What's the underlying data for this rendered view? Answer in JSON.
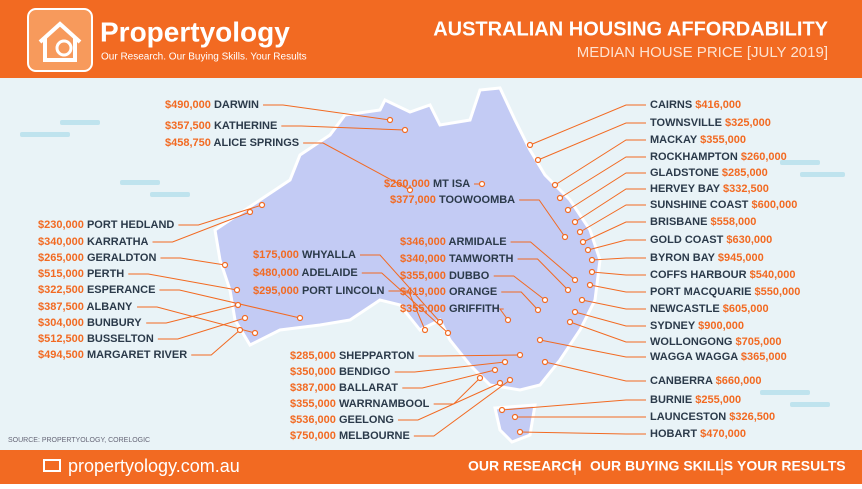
{
  "header": {
    "brand": "Propertyology",
    "tagline": "Our Research. Our Buying Skills. Your Results",
    "title": "AUSTRALIAN HOUSING AFFORDABILITY",
    "subtitle": "MEDIAN HOUSE PRICE [JULY 2019]"
  },
  "source": "SOURCE: PROPERTYOLOGY, CORELOGIC",
  "cities": [
    {
      "name": "DARWIN",
      "price": "$490,000"
    },
    {
      "name": "KATHERINE",
      "price": "$357,500"
    },
    {
      "name": "ALICE SPRINGS",
      "price": "$458,750"
    },
    {
      "name": "PORT HEDLAND",
      "price": "$230,000"
    },
    {
      "name": "KARRATHA",
      "price": "$340,000"
    },
    {
      "name": "GERALDTON",
      "price": "$265,000"
    },
    {
      "name": "PERTH",
      "price": "$515,000"
    },
    {
      "name": "ESPERANCE",
      "price": "$322,500"
    },
    {
      "name": "ALBANY",
      "price": "$387,500"
    },
    {
      "name": "BUNBURY",
      "price": "$304,000"
    },
    {
      "name": "BUSSELTON",
      "price": "$512,500"
    },
    {
      "name": "MARGARET RIVER",
      "price": "$494,500"
    },
    {
      "name": "MT ISA",
      "price": "$260,000"
    },
    {
      "name": "TOOWOOMBA",
      "price": "$377,000"
    },
    {
      "name": "WHYALLA",
      "price": "$175,000"
    },
    {
      "name": "ADELAIDE",
      "price": "$480,000"
    },
    {
      "name": "PORT LINCOLN",
      "price": "$295,000"
    },
    {
      "name": "ARMIDALE",
      "price": "$346,000"
    },
    {
      "name": "TAMWORTH",
      "price": "$340,000"
    },
    {
      "name": "DUBBO",
      "price": "$355,000"
    },
    {
      "name": "ORANGE",
      "price": "$419,000"
    },
    {
      "name": "GRIFFITH",
      "price": "$355,000"
    },
    {
      "name": "SHEPPARTON",
      "price": "$285,000"
    },
    {
      "name": "BENDIGO",
      "price": "$350,000"
    },
    {
      "name": "BALLARAT",
      "price": "$387,000"
    },
    {
      "name": "WARRNAMBOOL",
      "price": "$355,000"
    },
    {
      "name": "GEELONG",
      "price": "$536,000"
    },
    {
      "name": "MELBOURNE",
      "price": "$750,000"
    },
    {
      "name": "CAIRNS",
      "price": "$416,000"
    },
    {
      "name": "TOWNSVILLE",
      "price": "$325,000"
    },
    {
      "name": "MACKAY",
      "price": "$355,000"
    },
    {
      "name": "ROCKHAMPTON",
      "price": "$260,000"
    },
    {
      "name": "GLADSTONE",
      "price": "$285,000"
    },
    {
      "name": "HERVEY BAY",
      "price": "$332,500"
    },
    {
      "name": "SUNSHINE COAST",
      "price": "$600,000"
    },
    {
      "name": "BRISBANE",
      "price": "$558,000"
    },
    {
      "name": "GOLD COAST",
      "price": "$630,000"
    },
    {
      "name": "BYRON BAY",
      "price": "$945,000"
    },
    {
      "name": "COFFS HARBOUR",
      "price": "$540,000"
    },
    {
      "name": "PORT MACQUARIE",
      "price": "$550,000"
    },
    {
      "name": "NEWCASTLE",
      "price": "$605,000"
    },
    {
      "name": "SYDNEY",
      "price": "$900,000"
    },
    {
      "name": "WOLLONGONG",
      "price": "$705,000"
    },
    {
      "name": "WAGGA WAGGA",
      "price": "$365,000"
    },
    {
      "name": "CANBERRA",
      "price": "$660,000"
    },
    {
      "name": "BURNIE",
      "price": "$255,000"
    },
    {
      "name": "LAUNCESTON",
      "price": "$326,500"
    },
    {
      "name": "HOBART",
      "price": "$470,000"
    }
  ],
  "footer": {
    "website": "propertyology.com.au",
    "links": [
      "OUR RESEARCH",
      "OUR BUYING SKILLS",
      "YOUR RESULTS"
    ]
  }
}
